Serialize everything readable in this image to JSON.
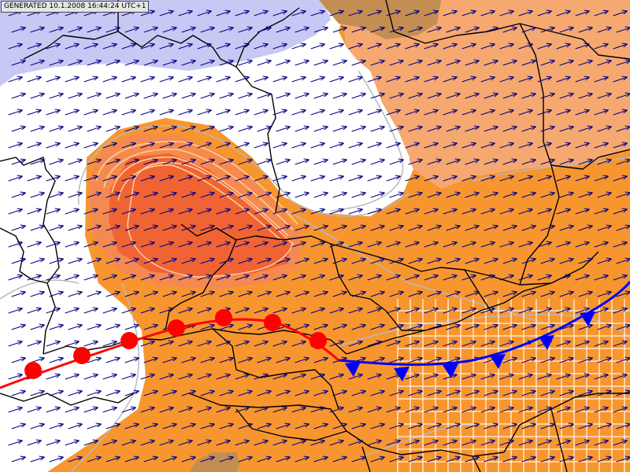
{
  "header": {
    "generated": "GENERATED 10.1.2008 16:44:24 UTC+1"
  },
  "legend_colors": {
    "cold": "#c8c8f5",
    "neutral": "#ffffff",
    "mild": "#f0a058",
    "warm": "#f59030",
    "hot": "#f06838",
    "land_high": "#c08c50",
    "isoline_gray": "#b4b4b4",
    "isoline_warm": "#ffd28c",
    "wind_arrow": "#000080",
    "border": "#000000",
    "warm_front": "#ff0000",
    "cold_front": "#0000ff"
  },
  "wind": {
    "direction": "east-northeast",
    "icon": "wind-arrow-icon"
  },
  "fronts": [
    {
      "type": "warm",
      "icon": "warm-front-semicircle-icon"
    },
    {
      "type": "cold",
      "icon": "cold-front-triangle-icon"
    }
  ]
}
